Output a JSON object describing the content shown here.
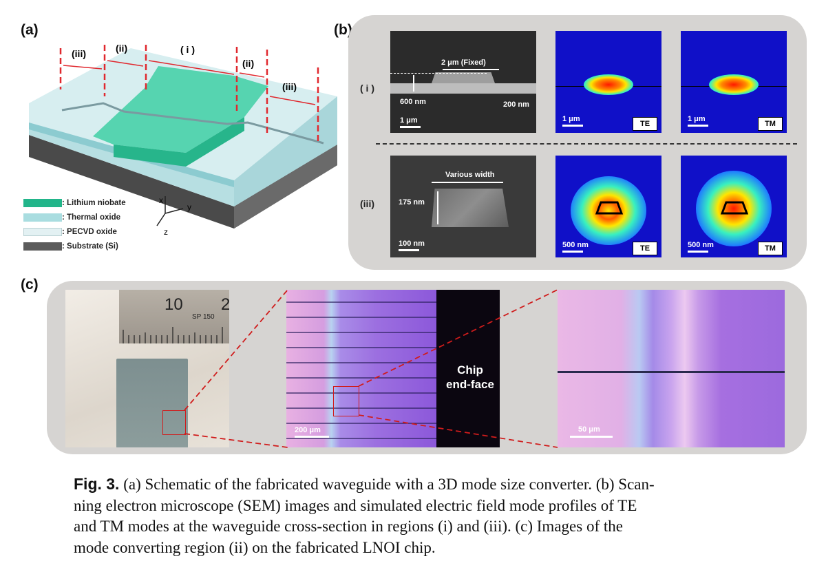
{
  "figure": {
    "panel_a_label": "(a)",
    "panel_b_label": "(b)",
    "panel_c_label": "(c)"
  },
  "panel_a": {
    "region_labels": [
      "(iii)",
      "(ii)",
      "( i )",
      "(ii)",
      "(iii)"
    ],
    "legend": [
      {
        "text": ": Lithium niobate",
        "color": "#22b58a"
      },
      {
        "text": ": Thermal oxide",
        "color": "#a9dde0"
      },
      {
        "text": ": PECVD oxide",
        "color": "#e3f1f3"
      },
      {
        "text": ": Substrate (Si)",
        "color": "#5b5b5b"
      }
    ],
    "axes": {
      "x": "x",
      "y": "y",
      "z": "z"
    }
  },
  "panel_b": {
    "row1_label": "( i )",
    "row2_label": "(iii)",
    "sem1": {
      "width_label": "2 μm (Fixed)",
      "thickness_label": "600 nm",
      "etch_label": "200 nm",
      "scale": "1 μm"
    },
    "sem2": {
      "width_label": "Various width",
      "thickness_label": "175 nm",
      "scale": "100 nm"
    },
    "mode_scale_row1": "1 μm",
    "mode_scale_row2": "500 nm",
    "te_label": "TE",
    "tm_label": "TM"
  },
  "panel_c": {
    "ruler_number_1": "10",
    "ruler_number_2": "2",
    "ruler_brand": "SP 150",
    "endface_label_1": "Chip",
    "endface_label_2": "end-face",
    "scale_middle": "200 μm",
    "scale_right": "50 μm"
  },
  "caption": {
    "fig_label": "Fig. 3.",
    "line1": " (a) Schematic of the fabricated waveguide with a 3D mode size converter. (b) Scan-",
    "line2": "ning electron microscope (SEM) images and simulated electric field mode profiles of TE",
    "line3": "and TM modes at the waveguide cross-section in regions (i) and (iii). (c) Images of the",
    "line4": "mode converting region (ii) on the fabricated LNOI chip."
  }
}
